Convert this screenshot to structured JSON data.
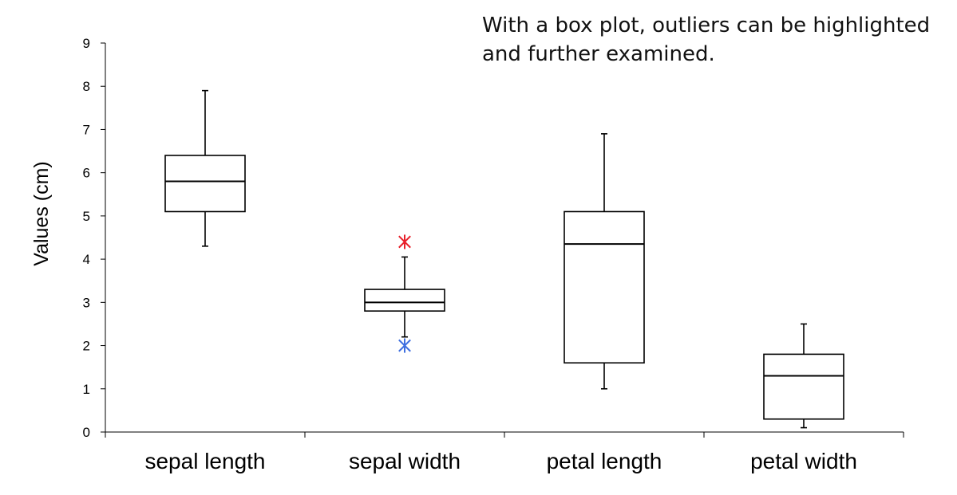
{
  "annotation": {
    "line1": "With a box plot, outliers can be highlighted",
    "line2": "and further examined."
  },
  "chart_data": {
    "type": "box",
    "title": "",
    "xlabel": "",
    "ylabel": "Values (cm)",
    "ylim": [
      0,
      9
    ],
    "yticks": [
      "0",
      "1",
      "2",
      "3",
      "4",
      "5",
      "6",
      "7",
      "8",
      "9"
    ],
    "grid": false,
    "legend": "none",
    "categories": [
      "sepal length",
      "sepal width",
      "petal length",
      "petal width"
    ],
    "boxes": [
      {
        "category": "sepal length",
        "whisker_low": 4.3,
        "q1": 5.1,
        "median": 5.8,
        "q3": 6.4,
        "whisker_high": 7.9,
        "outliers": []
      },
      {
        "category": "sepal width",
        "whisker_low": 2.2,
        "q1": 2.8,
        "median": 3.0,
        "q3": 3.3,
        "whisker_high": 4.05,
        "outliers": [
          {
            "value": 4.4,
            "color": "#e8202a"
          },
          {
            "value": 2.0,
            "color": "#3f6fe0"
          }
        ]
      },
      {
        "category": "petal length",
        "whisker_low": 1.0,
        "q1": 1.6,
        "median": 4.35,
        "q3": 5.1,
        "whisker_high": 6.9,
        "outliers": []
      },
      {
        "category": "petal width",
        "whisker_low": 0.1,
        "q1": 0.3,
        "median": 1.3,
        "q3": 1.8,
        "whisker_high": 2.5,
        "outliers": []
      }
    ]
  }
}
